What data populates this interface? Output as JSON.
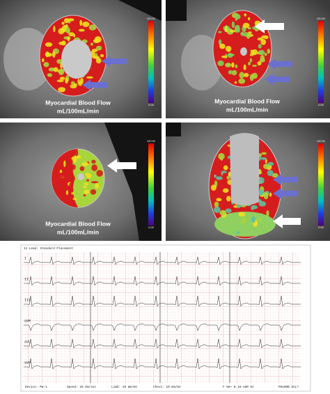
{
  "panels": [
    {
      "label_line1": "Myocardial Blood Flow",
      "label_line2": "mL/100mL/min",
      "scale_max": "120.51",
      "scale_min": "0.00"
    },
    {
      "label_line1": "Myocardial Blood Flow",
      "label_line2": "mL/100mL/min",
      "scale_max": "120.51",
      "scale_min": "0.00"
    },
    {
      "label_line1": "Myocardial Blood Flow",
      "label_line2": "mL/100mL/min",
      "scale_max": "120.51",
      "scale_min": "0.00"
    },
    {
      "scale_max": "120.51",
      "scale_min": "0.00"
    }
  ],
  "ecg": {
    "header": "12 Lead; Standard Placement",
    "leads": [
      "I",
      "II",
      "III",
      "aVR",
      "aVL",
      "aVF"
    ],
    "footer": [
      "Device: PW-1",
      "Speed: 25 mm/sec",
      "Limb: 10 mm/mV",
      "Chest: 10 mm/mV",
      "F 50~ 0.15-100 Hz",
      "PH100B bCL?"
    ]
  }
}
